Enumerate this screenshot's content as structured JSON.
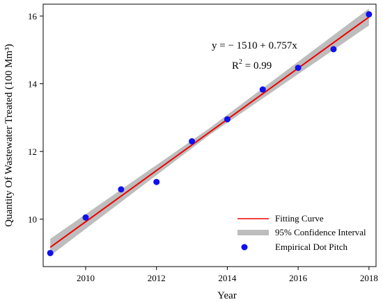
{
  "chart_data": {
    "type": "scatter",
    "xlabel": "Year",
    "ylabel": "Quantity Of Wastewater Treated (100 Mm³)",
    "xlim": [
      2008.8,
      2018.2
    ],
    "ylim": [
      8.6,
      16.35
    ],
    "xticks": [
      2010,
      2012,
      2014,
      2016,
      2018
    ],
    "yticks": [
      10,
      12,
      14,
      16
    ],
    "grid": false,
    "legend_position": "bottom-right",
    "series": [
      {
        "name": "Empirical Dot Pitch",
        "kind": "points",
        "color": "#1010ee",
        "x": [
          2009,
          2010,
          2011,
          2012,
          2013,
          2014,
          2015,
          2016,
          2017,
          2018
        ],
        "y": [
          9.0,
          10.05,
          10.88,
          11.1,
          12.3,
          12.95,
          13.83,
          14.47,
          15.02,
          16.05
        ]
      },
      {
        "name": "Fitting Curve",
        "kind": "line",
        "color": "#ee0000",
        "x": [
          2009,
          2018
        ],
        "y": [
          9.17,
          15.97
        ]
      },
      {
        "name": "95% Confidence Interval",
        "kind": "band",
        "color": "#bdbdbd",
        "x": [
          2009,
          2013.5,
          2018
        ],
        "lower": [
          8.92,
          12.49,
          15.72
        ],
        "upper": [
          9.42,
          12.69,
          16.22
        ]
      }
    ],
    "annotations": {
      "equation": "y = − 1510 + 0.757x",
      "r2_prefix": "R",
      "r2_exp": "2",
      "r2_value": " = 0.99"
    }
  },
  "legend": {
    "fitting_curve": "Fitting Curve",
    "confidence_interval": "95% Confidence Interval",
    "empirical_points": "Empirical Dot Pitch"
  }
}
